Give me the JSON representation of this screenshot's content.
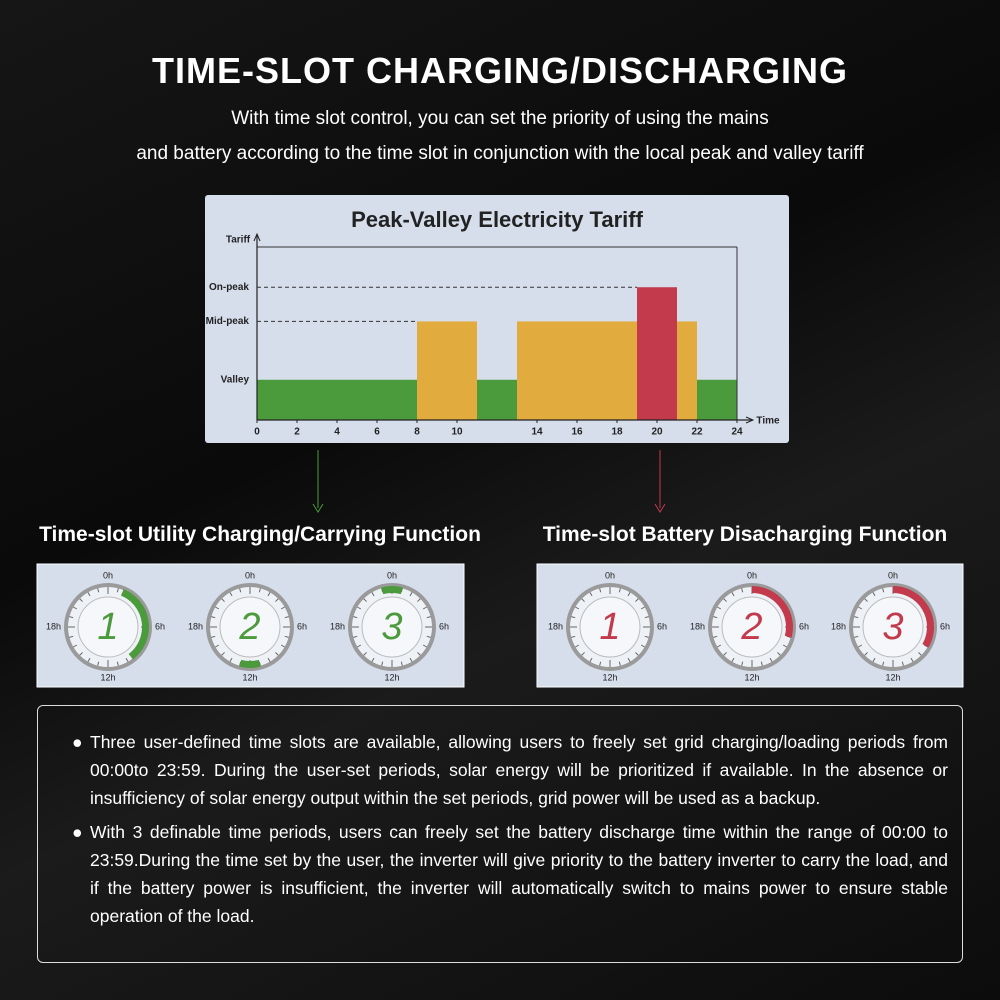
{
  "header": {
    "title": "TIME-SLOT CHARGING/DISCHARGING",
    "subtitle": [
      "With time slot control, you can set the priority of using the mains",
      "and battery according to the time slot in conjunction with the local peak and valley tariff"
    ]
  },
  "chart_data": {
    "type": "histogram",
    "title": "Peak-Valley Electricity Tariff",
    "y_label": "Tariff",
    "x_label": "Time",
    "bins": [
      0,
      8,
      11,
      13,
      19,
      21,
      22,
      24
    ],
    "values": [
      1,
      2.45,
      1,
      2.45,
      3.3,
      2.45,
      1
    ],
    "colors": [
      "#4b9a3c",
      "#e2ab3e",
      "#4b9a3c",
      "#e2ab3e",
      "#c23a4c",
      "#e2ab3e",
      "#4b9a3c"
    ],
    "xlim": [
      0,
      24
    ],
    "xticks": [
      0,
      2,
      4,
      6,
      8,
      10,
      14,
      16,
      18,
      20,
      22,
      24
    ],
    "ylim": [
      0,
      4.3
    ],
    "yticks": [
      {
        "value": 1,
        "label": "Valley"
      },
      {
        "value": 2.45,
        "label": "Mid-peak"
      },
      {
        "value": 3.3,
        "label": "On-peak"
      }
    ]
  },
  "dial_labels": [
    "0h",
    "6h",
    "12h",
    "18h"
  ],
  "panels": [
    {
      "title": "Time-slot Utility Charging/Carrying Function",
      "color": "#4b9a3c",
      "clocks": [
        {
          "label": "1",
          "slot": [
            1.5,
            9.5
          ]
        },
        {
          "label": "2",
          "slot": [
            11,
            13
          ]
        },
        {
          "label": "3",
          "slot": [
            23,
            1
          ]
        }
      ]
    },
    {
      "title": "Time-slot Battery Disacharging Function",
      "color": "#c23a4c",
      "clocks": [
        {
          "label": "1"
        },
        {
          "label": "2",
          "slot": [
            0,
            7
          ]
        },
        {
          "label": "3",
          "slot": [
            0,
            8
          ]
        }
      ]
    }
  ],
  "notes": [
    "Three user-defined time slots are available, allowing users to freely set grid charging/loading periods from 00:00to 23:59. During the user-set periods, solar energy will be prioritized if available. In the absence or insufficiency of solar energy output within the set periods, grid power will be used as a backup.",
    "With 3 definable time periods, users can freely set the battery discharge time within the range of 00:00 to 23:59.During the time set by the user, the inverter will give priority to the battery inverter to carry the load, and if the battery power is insufficient, the inverter will automatically switch to mains power to ensure stable operation of the load."
  ]
}
